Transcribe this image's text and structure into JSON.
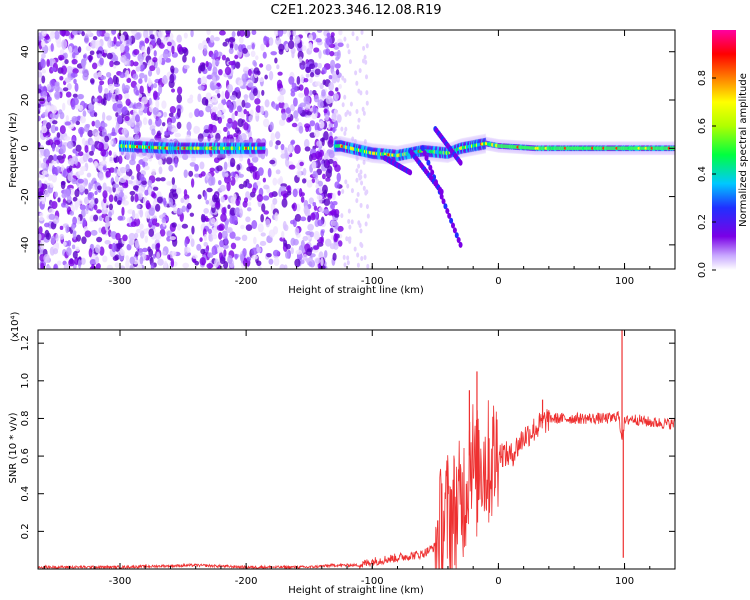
{
  "title": "C2E1.2023.346.12.08.R19",
  "chart_data": [
    {
      "type": "heatmap",
      "xlabel": "Height of straight line (km)",
      "ylabel": "Frequency (Hz)",
      "xlim": [
        -365,
        140
      ],
      "ylim": [
        -50,
        49
      ],
      "xticks": [
        -300,
        -200,
        -100,
        0,
        100
      ],
      "xtick_labels": [
        "-300",
        "-200",
        "-100",
        "0",
        "100"
      ],
      "yticks": [
        -40,
        -20,
        0,
        20,
        40
      ],
      "ytick_labels": [
        "-40",
        "-20",
        "0",
        "20",
        "40"
      ],
      "grid": false,
      "colorbar": {
        "label": "Normalized spectral amplitude",
        "range": [
          0,
          1
        ],
        "ticks": [
          0,
          0.2,
          0.4,
          0.6,
          0.8
        ],
        "tick_labels": [
          "0.0",
          "0.2",
          "0.4",
          "0.6",
          "0.8"
        ],
        "colormap": "rainbow"
      },
      "ridge": {
        "x": [
          -300,
          -260,
          -220,
          -190,
          -125,
          -100,
          -80,
          -60,
          -40,
          -30,
          -20,
          -10,
          0,
          30,
          60,
          90,
          100,
          140
        ],
        "y": [
          1,
          0,
          0,
          0,
          1,
          -2,
          -3,
          -1,
          -2,
          0,
          1,
          2,
          1,
          0,
          0,
          0,
          0,
          0
        ]
      },
      "colors": {
        "background": "#ffffff",
        "noise": "#7a00e6"
      }
    },
    {
      "type": "line",
      "xlabel": "Height of straight line (km)",
      "ylabel": "SNR (10 * v/v)",
      "y_multiplier": "(x10⁴)",
      "xlim": [
        -365,
        140
      ],
      "ylim": [
        0,
        1.27
      ],
      "xticks": [
        -300,
        -200,
        -100,
        0,
        100
      ],
      "xtick_labels": [
        "-300",
        "-200",
        "-100",
        "0",
        "100"
      ],
      "yticks": [
        0.2,
        0.4,
        0.6,
        0.8,
        1.0,
        1.2
      ],
      "ytick_labels": [
        "0.2",
        "0.4",
        "0.6",
        "0.8",
        "1.0",
        "1.2"
      ],
      "grid": false,
      "series": [
        {
          "color": "#ee3030",
          "x": [
            -365,
            -300,
            -240,
            -200,
            -150,
            -130,
            -110,
            -100,
            -80,
            -60,
            -50,
            -45,
            -40,
            -35,
            -30,
            -25,
            -22,
            -18,
            -15,
            -10,
            -5,
            0,
            10,
            20,
            30,
            40,
            50,
            70,
            90,
            95,
            98,
            100,
            105,
            120,
            140
          ],
          "y": [
            0.01,
            0.01,
            0.02,
            0.01,
            0.01,
            0.02,
            0.02,
            0.04,
            0.06,
            0.08,
            0.12,
            0.22,
            0.3,
            0.3,
            0.35,
            0.45,
            0.68,
            0.45,
            0.6,
            0.55,
            0.58,
            0.62,
            0.6,
            0.7,
            0.75,
            0.8,
            0.8,
            0.8,
            0.8,
            0.82,
            0.7,
            0.78,
            0.8,
            0.78,
            0.77
          ],
          "spikes": [
            {
              "x": -17,
              "y": 1.05
            },
            {
              "x": -23,
              "y": 0.95
            },
            {
              "x": 35,
              "y": 0.9
            },
            {
              "x": 98,
              "y": 1.27
            },
            {
              "x": 99,
              "y": 0.06
            }
          ]
        }
      ]
    }
  ]
}
